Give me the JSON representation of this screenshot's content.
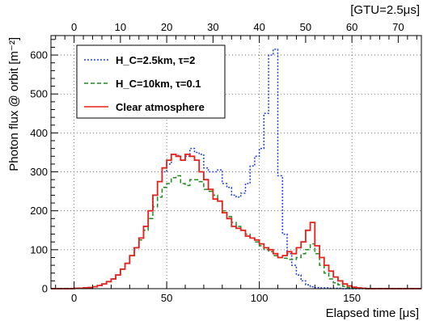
{
  "chart_data": {
    "type": "line",
    "style": "histogram-step",
    "xlabel": "Elapsed time [μs]",
    "ylabel": "Photon flux @ orbit [m⁻²]",
    "xlim": [
      -12.5,
      187.5
    ],
    "ylim": [
      0,
      650
    ],
    "x_ticks": [
      0,
      50,
      100,
      150
    ],
    "y_ticks": [
      0,
      100,
      200,
      300,
      400,
      500,
      600
    ],
    "top_axis": {
      "label": "[GTU=2.5μs]",
      "ticks": [
        0,
        10,
        20,
        30,
        40,
        50,
        60,
        70
      ],
      "scale": 2.5
    },
    "grid": true,
    "legend_position": "top-left",
    "bin_width": 2.5,
    "bin_start": 0,
    "series": [
      {
        "name": "H_C=2.5km, τ=2",
        "color": "#1f3fe0",
        "dash": "dotted",
        "values": [
          1,
          1,
          2,
          3,
          5,
          8,
          12,
          18,
          25,
          35,
          50,
          65,
          85,
          105,
          130,
          160,
          200,
          240,
          275,
          300,
          320,
          345,
          342,
          330,
          340,
          360,
          350,
          345,
          310,
          300,
          300,
          305,
          270,
          260,
          240,
          235,
          245,
          270,
          315,
          340,
          360,
          450,
          600,
          615,
          290,
          140,
          90,
          60,
          35,
          20,
          10,
          5,
          3,
          2,
          2,
          1,
          1,
          1,
          0,
          0,
          0,
          0,
          0,
          0,
          0,
          0,
          0,
          0,
          0,
          0,
          0,
          0,
          0,
          0,
          0
        ]
      },
      {
        "name": "H_C=10km, τ=0.1",
        "color": "#1e8a1e",
        "dash": "dashed",
        "values": [
          1,
          1,
          2,
          3,
          5,
          8,
          12,
          18,
          25,
          35,
          50,
          65,
          85,
          105,
          125,
          150,
          180,
          210,
          235,
          260,
          270,
          285,
          290,
          270,
          265,
          280,
          280,
          275,
          255,
          250,
          240,
          225,
          200,
          185,
          170,
          160,
          150,
          140,
          130,
          120,
          110,
          100,
          95,
          85,
          80,
          78,
          75,
          75,
          80,
          90,
          100,
          115,
          90,
          60,
          40,
          25,
          15,
          10,
          6,
          3,
          2,
          1,
          1,
          0,
          0,
          0,
          0,
          0,
          0,
          0,
          0,
          0,
          0,
          0,
          0
        ]
      },
      {
        "name": "Clear atmosphere",
        "color": "#e8201a",
        "dash": "solid",
        "values": [
          1,
          1,
          2,
          3,
          5,
          8,
          12,
          18,
          25,
          35,
          50,
          65,
          85,
          105,
          130,
          160,
          200,
          240,
          275,
          310,
          330,
          345,
          340,
          330,
          345,
          340,
          330,
          300,
          280,
          255,
          230,
          225,
          195,
          180,
          160,
          155,
          150,
          135,
          130,
          125,
          115,
          105,
          100,
          90,
          80,
          85,
          95,
          90,
          105,
          120,
          150,
          170,
          110,
          80,
          60,
          45,
          30,
          20,
          12,
          7,
          4,
          2,
          1,
          0,
          0,
          0,
          0,
          0,
          0,
          0,
          0,
          0,
          0,
          0,
          0
        ]
      }
    ]
  }
}
